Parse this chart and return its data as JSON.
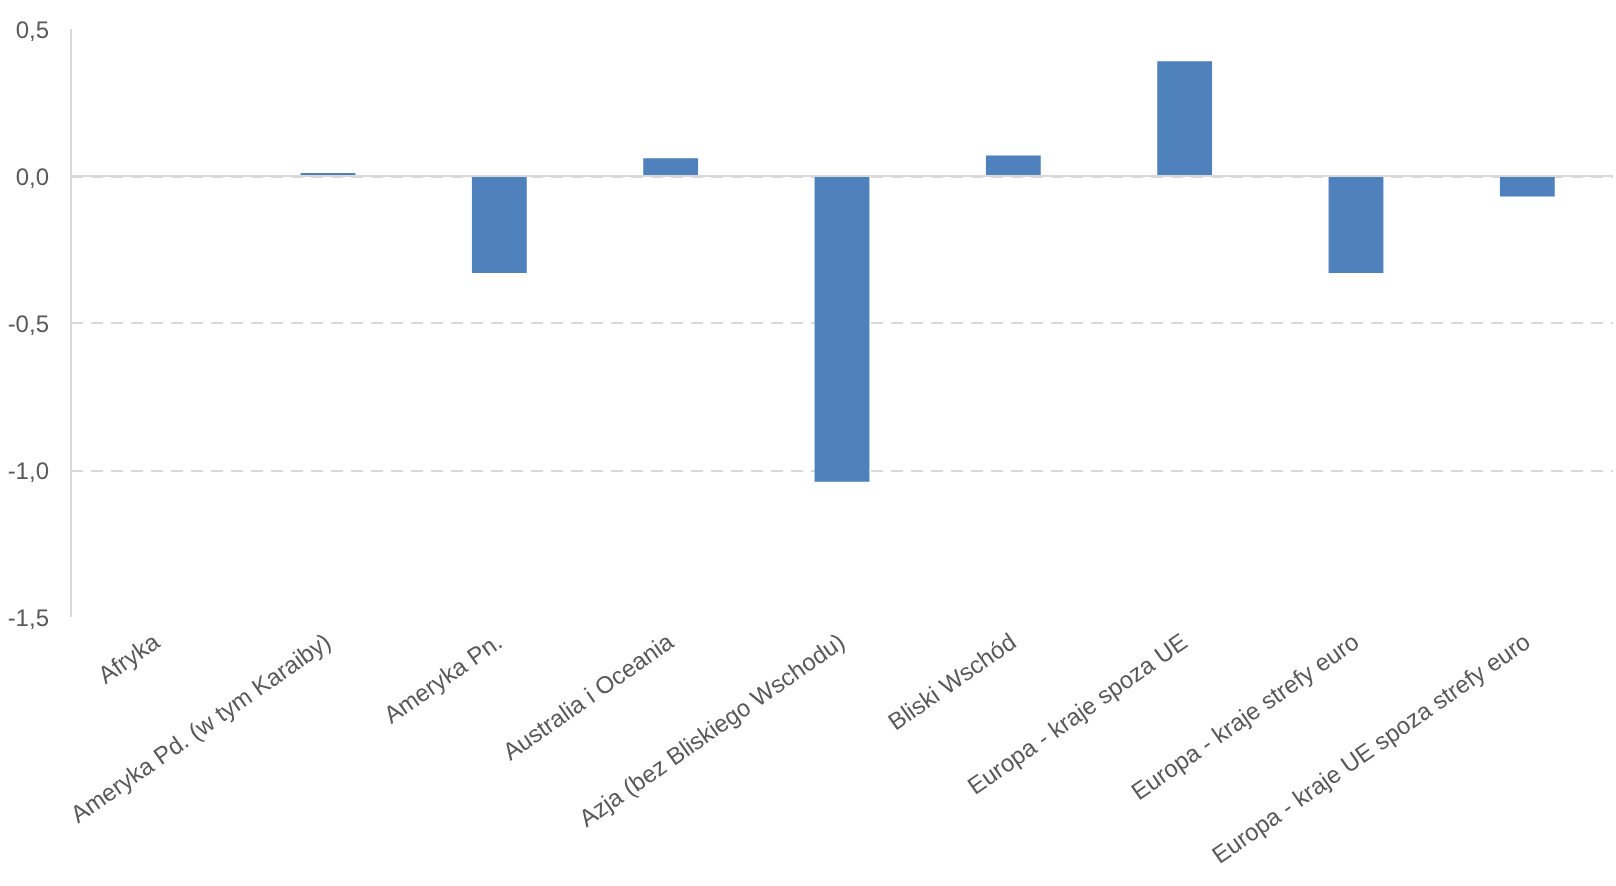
{
  "chart_data": {
    "type": "bar",
    "categories": [
      "Afryka",
      "Ameryka Pd. (w tym Karaiby)",
      "Ameryka Pn.",
      "Australia i Oceania",
      "Azja (bez Bliskiego Wschodu)",
      "Bliski Wschód",
      "Europa - kraje spoza UE",
      "Europa - kraje strefy euro",
      "Europa - kraje UE spoza strefy euro"
    ],
    "values": [
      0,
      0.01,
      -0.33,
      0.06,
      -1.04,
      0.07,
      0.39,
      -0.33,
      -0.07
    ],
    "color": "#4f81bd",
    "ylim": [
      -1.5,
      0.5
    ],
    "yticks": [
      {
        "value": -1.5,
        "label": "-1,5"
      },
      {
        "value": -1.0,
        "label": "-1,0"
      },
      {
        "value": -0.5,
        "label": "-0,5"
      },
      {
        "value": 0.0,
        "label": "0,0"
      },
      {
        "value": 0.5,
        "label": "0,5"
      }
    ],
    "grid": "y"
  }
}
